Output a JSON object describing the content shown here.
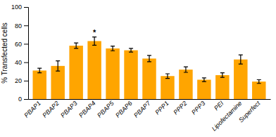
{
  "chart_data": {
    "type": "bar",
    "categories": [
      "PBAP1",
      "PBAP2",
      "PBAP3",
      "PBAP4",
      "PBAP5",
      "PBAP6",
      "PBAP7",
      "PPP1",
      "PPP2",
      "PPP3",
      "PEI",
      "Lipofectamine",
      "Superfect"
    ],
    "values": [
      31,
      36,
      58,
      63,
      55,
      53,
      44,
      25,
      32,
      21,
      26,
      43,
      19
    ],
    "errors": [
      2.5,
      5.5,
      3.0,
      4.5,
      2.5,
      2.0,
      3.5,
      2.5,
      3.0,
      2.0,
      2.5,
      5.0,
      2.0
    ],
    "color": "#FFA500",
    "ylabel": "% Transfected cells",
    "ylim": [
      0,
      100
    ],
    "yticks": [
      0,
      20,
      40,
      60,
      80,
      100
    ],
    "annotations": [
      {
        "text": "*",
        "category": "PBAP4"
      }
    ],
    "grid": false
  }
}
